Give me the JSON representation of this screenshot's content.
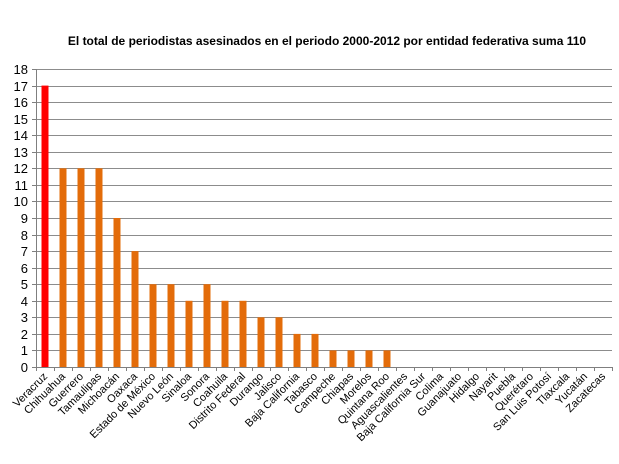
{
  "chart_data": {
    "type": "bar",
    "title": "El total de periodistas asesinados en el periodo 2000-2012 por entidad federativa suma 110",
    "xlabel": "",
    "ylabel": "",
    "ylim": [
      0,
      18
    ],
    "yticks": [
      0,
      1,
      2,
      3,
      4,
      5,
      6,
      7,
      8,
      9,
      10,
      11,
      12,
      13,
      14,
      15,
      16,
      17,
      18
    ],
    "grid": true,
    "legend": "none",
    "bar_color": "#E36C0A",
    "highlight_color": "#FF0000",
    "highlight_index": 0,
    "categories": [
      "Veracruz",
      "Chihuahua",
      "Guerrero",
      "Tamaulipas",
      "Michoacán",
      "Oaxaca",
      "Estado de México",
      "Nuevo León",
      "Sinaloa",
      "Sonora",
      "Coahuila",
      "Distrito Federal",
      "Durango",
      "Jalisco",
      "Baja California",
      "Tabasco",
      "Campeche",
      "Chiapas",
      "Morelos",
      "Quintana Roo",
      "Aguascalientes",
      "Baja California Sur",
      "Colima",
      "Guanajuato",
      "Hidalgo",
      "Nayarit",
      "Puebla",
      "Querétaro",
      "San Luis Potosí",
      "Tlaxcala",
      "Yucatán",
      "Zacatecas"
    ],
    "values": [
      17,
      12,
      12,
      12,
      9,
      7,
      5,
      5,
      4,
      5,
      4,
      4,
      3,
      3,
      2,
      2,
      1,
      1,
      1,
      1,
      0,
      0,
      0,
      0,
      0,
      0,
      0,
      0,
      0,
      0,
      0,
      0
    ]
  }
}
